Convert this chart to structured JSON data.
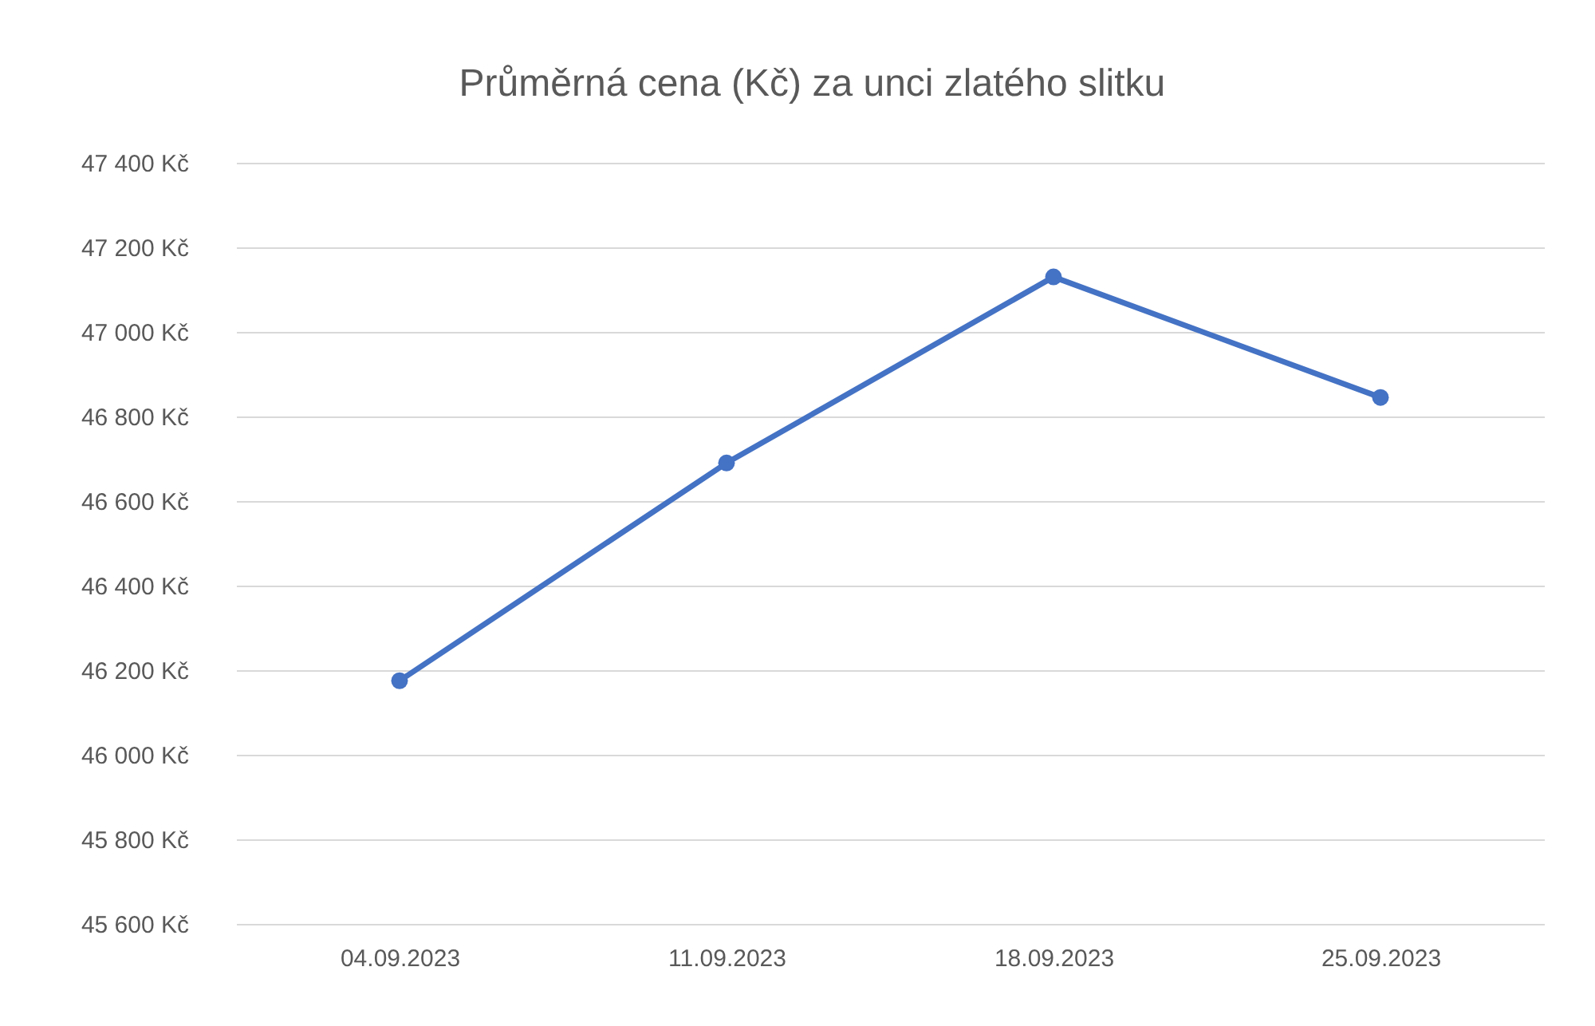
{
  "chart_data": {
    "type": "line",
    "title": "Průměrná cena (Kč) za unci zlatého slitku",
    "categories": [
      "04.09.2023",
      "11.09.2023",
      "18.09.2023",
      "25.09.2023"
    ],
    "series": [
      {
        "color": "#4472c4",
        "values": [
          46175,
          46690,
          47130,
          46845
        ]
      }
    ],
    "ylim": [
      45600,
      47400
    ],
    "yticks": [
      {
        "value": 45600,
        "label": "45 600 Kč"
      },
      {
        "value": 45800,
        "label": "45 800 Kč"
      },
      {
        "value": 46000,
        "label": "46 000 Kč"
      },
      {
        "value": 46200,
        "label": "46 200 Kč"
      },
      {
        "value": 46400,
        "label": "46 400 Kč"
      },
      {
        "value": 46600,
        "label": "46 600 Kč"
      },
      {
        "value": 46800,
        "label": "46 800 Kč"
      },
      {
        "value": 47000,
        "label": "47 000 Kč"
      },
      {
        "value": 47200,
        "label": "47 200 Kč"
      },
      {
        "value": 47400,
        "label": "47 400 Kč"
      }
    ],
    "grid": "y",
    "marker": "circle",
    "line_style": "solid"
  }
}
